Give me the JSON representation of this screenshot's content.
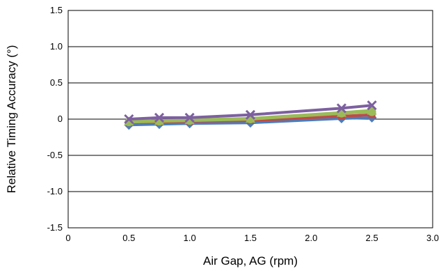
{
  "chart_data": {
    "type": "line",
    "title": "",
    "xlabel": "Air Gap, AG (rpm)",
    "ylabel": "Relative Timing Accuracy (°)",
    "xlim": [
      0,
      3.0
    ],
    "ylim": [
      -1.5,
      1.5
    ],
    "x_ticks": [
      0,
      0.5,
      1.0,
      1.5,
      2.0,
      2.5,
      3.0
    ],
    "x_tick_labels": [
      "0",
      "0.5",
      "1.0",
      "1.5",
      "2.0",
      "2.5",
      "3.0"
    ],
    "y_ticks": [
      1.5,
      1.0,
      0.5,
      0,
      -0.5,
      -1.0,
      -1.5
    ],
    "y_tick_labels": [
      "1.5",
      "1.0",
      "0.5",
      "0",
      "-0.5",
      "-1.0",
      "-1.5"
    ],
    "grid": "horizontal",
    "legend": "none",
    "x": [
      0.5,
      0.75,
      1.0,
      1.5,
      2.25,
      2.5
    ],
    "series": [
      {
        "marker": "diamond",
        "color": "#4a7ebb",
        "values": [
          -0.08,
          -0.07,
          -0.06,
          -0.05,
          0.01,
          0.02
        ]
      },
      {
        "marker": "square",
        "color": "#be4b48",
        "values": [
          -0.05,
          -0.04,
          -0.03,
          -0.02,
          0.04,
          0.06
        ]
      },
      {
        "marker": "triangle",
        "color": "#98b954",
        "values": [
          -0.03,
          -0.02,
          -0.01,
          0.01,
          0.09,
          0.12
        ]
      },
      {
        "marker": "circle",
        "color": "#9bbb59",
        "values": [
          -0.04,
          -0.03,
          -0.02,
          0.0,
          0.08,
          0.1
        ]
      },
      {
        "marker": "x",
        "color": "#7d60a0",
        "values": [
          0.0,
          0.02,
          0.02,
          0.06,
          0.15,
          0.19
        ]
      }
    ]
  }
}
